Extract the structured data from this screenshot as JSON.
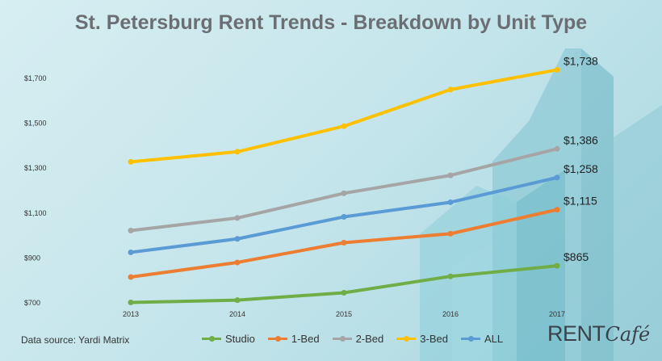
{
  "title": "St. Petersburg Rent Trends - Breakdown by Unit Type",
  "source": "Data source:  Yardi Matrix",
  "brand": {
    "main": "RENT",
    "script": "Café"
  },
  "chart_data": {
    "type": "line",
    "title": "St. Petersburg Rent Trends - Breakdown by Unit Type",
    "x": [
      "2013",
      "2014",
      "2015",
      "2016",
      "2017"
    ],
    "ylim": [
      700,
      1760
    ],
    "y_ticks": [
      "$700",
      "$900",
      "$1,100",
      "$1,300",
      "$1,500",
      "$1,700"
    ],
    "grid": false,
    "legend": "bottom",
    "series": [
      {
        "name": "Studio",
        "color": "#70ad47",
        "values": [
          702,
          712,
          745,
          818,
          865
        ],
        "end_label": "$865"
      },
      {
        "name": "1-Bed",
        "color": "#ed7d31",
        "values": [
          815,
          880,
          968,
          1008,
          1115
        ],
        "end_label": "$1,115"
      },
      {
        "name": "2-Bed",
        "color": "#a5a5a5",
        "values": [
          1022,
          1078,
          1188,
          1268,
          1386
        ],
        "end_label": "$1,386"
      },
      {
        "name": "3-Bed",
        "color": "#ffc000",
        "values": [
          1328,
          1373,
          1487,
          1650,
          1738
        ],
        "end_label": "$1,738"
      },
      {
        "name": "ALL",
        "color": "#5b9bd5",
        "values": [
          925,
          985,
          1083,
          1148,
          1258
        ],
        "end_label": "$1,258"
      }
    ]
  }
}
